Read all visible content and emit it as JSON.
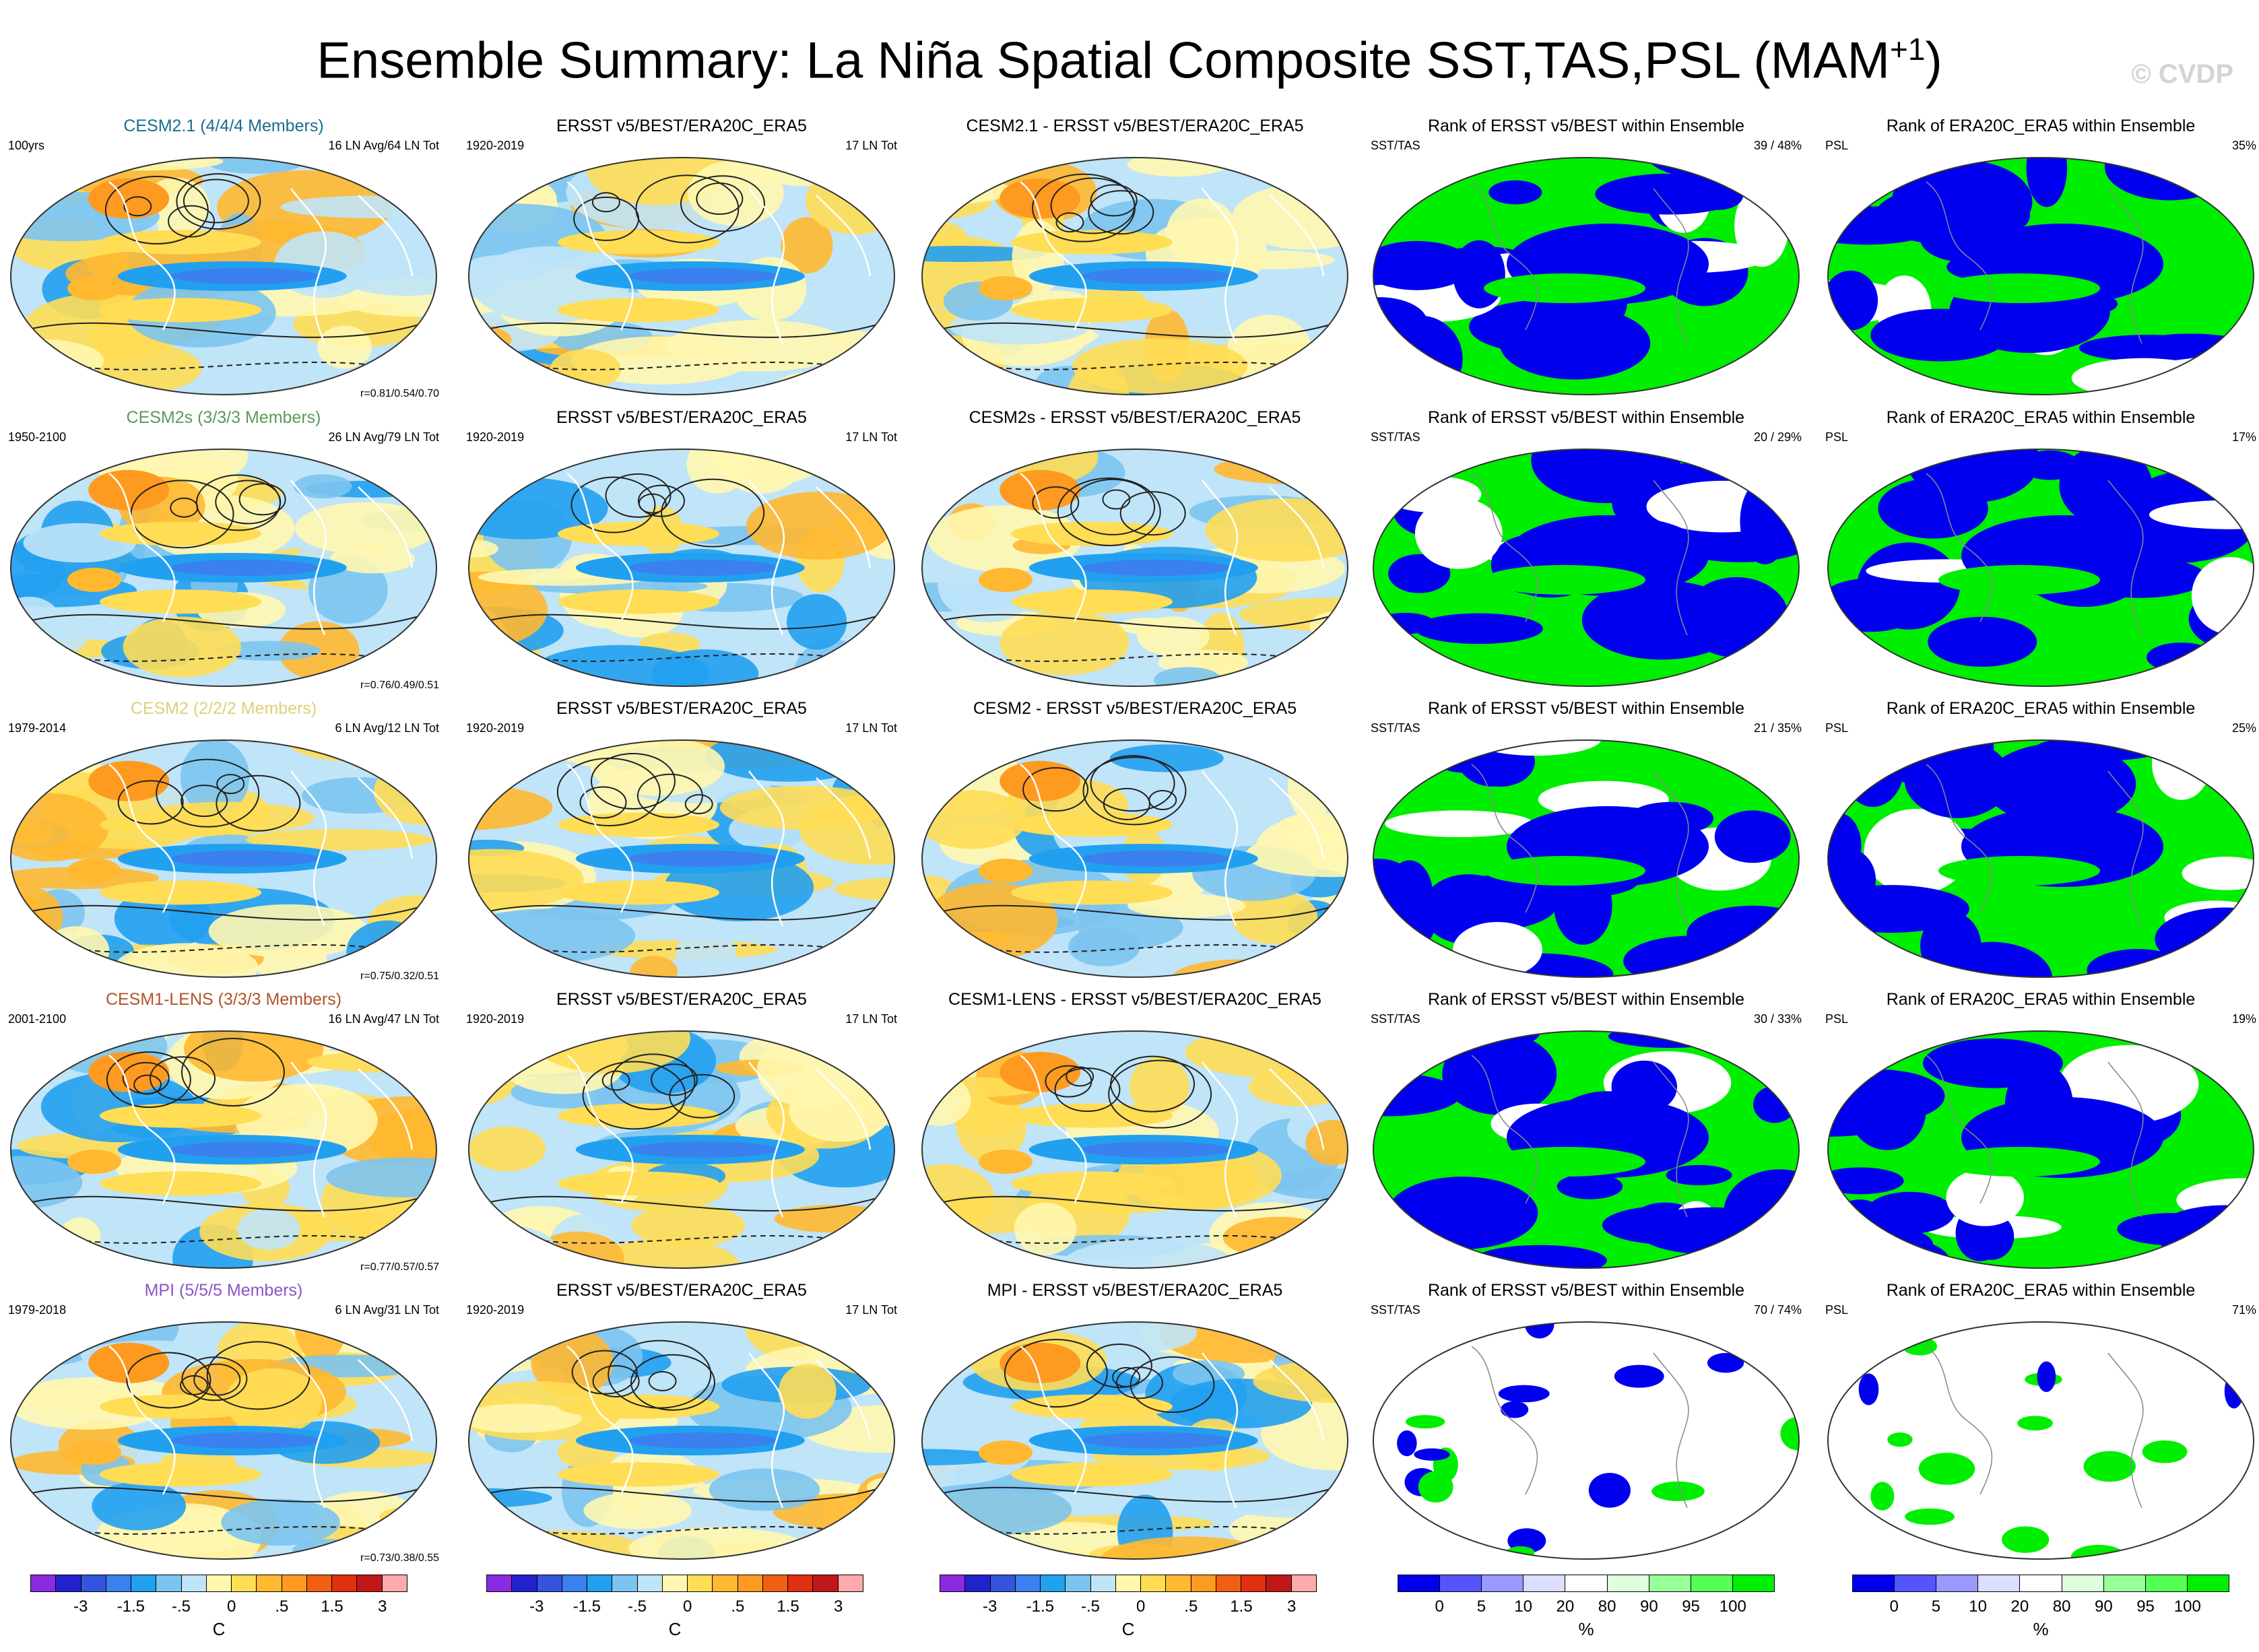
{
  "title": "Ensemble Summary: La Niña Spatial Composite SST,TAS,PSL (MAM",
  "title_sup": "+1",
  "title_close": ")",
  "watermark": "© CVDP",
  "colors": {
    "model_cesm21": "#1a6e8c",
    "model_cesm2s": "#5a9a5a",
    "model_cesm2": "#e0cf7a",
    "model_cesm1lens": "#b0532a",
    "model_mpi": "#8a55c8",
    "rank_blue": "#0000ee",
    "rank_green": "#00ee00"
  },
  "rows": [
    {
      "model": {
        "title": "CESM2.1 (4/4/4 Members)",
        "period": "100yrs",
        "count": "16 LN Avg/64 LN Tot",
        "corr": "r=0.81/0.54/0.70"
      },
      "obs": {
        "title": "ERSST v5/BEST/ERA20C_ERA5",
        "period": "1920-2019",
        "count": "17 LN Tot"
      },
      "diff": {
        "title": "CESM2.1 - ERSST v5/BEST/ERA20C_ERA5"
      },
      "rank_sst": {
        "title": "Rank of ERSST v5/BEST within Ensemble",
        "left": "SST/TAS",
        "right": "39 /  48%"
      },
      "rank_psl": {
        "title": "Rank of ERA20C_ERA5 within Ensemble",
        "left": "PSL",
        "right": "35%"
      }
    },
    {
      "model": {
        "title": "CESM2s (3/3/3 Members)",
        "period": "1950-2100",
        "count": "26 LN Avg/79 LN Tot",
        "corr": "r=0.76/0.49/0.51"
      },
      "obs": {
        "title": "ERSST v5/BEST/ERA20C_ERA5",
        "period": "1920-2019",
        "count": "17 LN Tot"
      },
      "diff": {
        "title": "CESM2s - ERSST v5/BEST/ERA20C_ERA5"
      },
      "rank_sst": {
        "title": "Rank of ERSST v5/BEST within Ensemble",
        "left": "SST/TAS",
        "right": "20 /  29%"
      },
      "rank_psl": {
        "title": "Rank of ERA20C_ERA5 within Ensemble",
        "left": "PSL",
        "right": "17%"
      }
    },
    {
      "model": {
        "title": "CESM2 (2/2/2 Members)",
        "period": "1979-2014",
        "count": "6 LN Avg/12 LN Tot",
        "corr": "r=0.75/0.32/0.51"
      },
      "obs": {
        "title": "ERSST v5/BEST/ERA20C_ERA5",
        "period": "1920-2019",
        "count": "17 LN Tot"
      },
      "diff": {
        "title": "CESM2 - ERSST v5/BEST/ERA20C_ERA5"
      },
      "rank_sst": {
        "title": "Rank of ERSST v5/BEST within Ensemble",
        "left": "SST/TAS",
        "right": "21 /  35%"
      },
      "rank_psl": {
        "title": "Rank of ERA20C_ERA5 within Ensemble",
        "left": "PSL",
        "right": "25%"
      }
    },
    {
      "model": {
        "title": "CESM1-LENS (3/3/3 Members)",
        "period": "2001-2100",
        "count": "16 LN Avg/47 LN Tot",
        "corr": "r=0.77/0.57/0.57"
      },
      "obs": {
        "title": "ERSST v5/BEST/ERA20C_ERA5",
        "period": "1920-2019",
        "count": "17 LN Tot"
      },
      "diff": {
        "title": "CESM1-LENS - ERSST v5/BEST/ERA20C_ERA5"
      },
      "rank_sst": {
        "title": "Rank of ERSST v5/BEST within Ensemble",
        "left": "SST/TAS",
        "right": "30 /  33%"
      },
      "rank_psl": {
        "title": "Rank of ERA20C_ERA5 within Ensemble",
        "left": "PSL",
        "right": "19%"
      }
    },
    {
      "model": {
        "title": "MPI (5/5/5 Members)",
        "period": "1979-2018",
        "count": "6 LN Avg/31 LN Tot",
        "corr": "r=0.73/0.38/0.55"
      },
      "obs": {
        "title": "ERSST v5/BEST/ERA20C_ERA5",
        "period": "1920-2019",
        "count": "17 LN Tot"
      },
      "diff": {
        "title": "MPI - ERSST v5/BEST/ERA20C_ERA5"
      },
      "rank_sst": {
        "title": "Rank of ERSST v5/BEST within Ensemble",
        "left": "SST/TAS",
        "right": "70 /  74%"
      },
      "rank_psl": {
        "title": "Rank of ERA20C_ERA5 within Ensemble",
        "left": "PSL",
        "right": "71%"
      }
    }
  ],
  "temp_colorbar": {
    "colors": [
      "#8a2be2",
      "#2222cc",
      "#3355dd",
      "#3a80ee",
      "#22a0f0",
      "#7cc4f0",
      "#c0e4f8",
      "#fff7b0",
      "#ffdd55",
      "#ffb830",
      "#ff9a20",
      "#f06010",
      "#e03010",
      "#c01818",
      "#ffaaaa"
    ],
    "labels": [
      "-3",
      "-1.5",
      "-.5",
      "0",
      ".5",
      "1.5",
      "3"
    ],
    "unit": "C"
  },
  "rank_colorbar": {
    "colors": [
      "#0000ee",
      "#5555ff",
      "#9999ff",
      "#ddddff",
      "#ffffff",
      "#ddffdd",
      "#99ff99",
      "#55ff55",
      "#00ee00"
    ],
    "labels": [
      "0",
      "5",
      "10",
      "20",
      "80",
      "90",
      "95",
      "100"
    ],
    "unit": "%"
  }
}
